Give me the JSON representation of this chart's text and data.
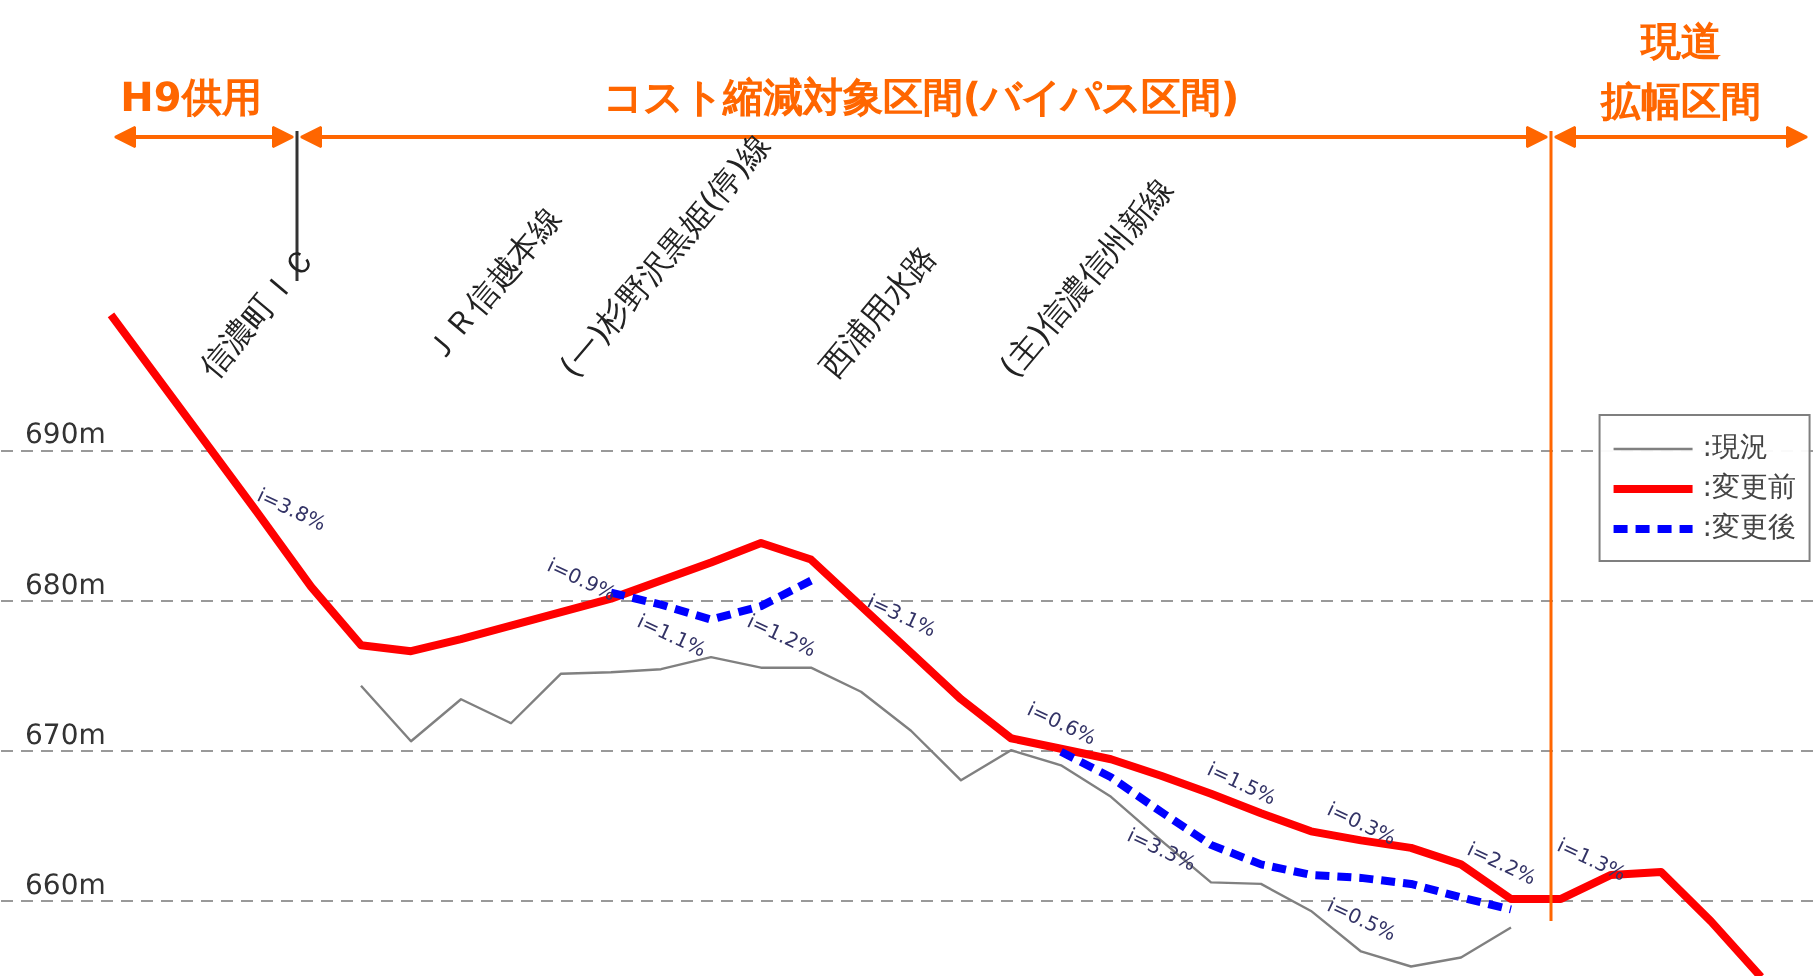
{
  "chart_data": {
    "type": "line",
    "categories": [
      null,
      null,
      null,
      null,
      null,
      null,
      null,
      null,
      null,
      null,
      null,
      null,
      null,
      null,
      null,
      null,
      null,
      null,
      null,
      null,
      null,
      null,
      null,
      null,
      null,
      null,
      null,
      null,
      null,
      null,
      null,
      null,
      null,
      null
    ],
    "ylim": [
      655,
      720
    ],
    "yticks": [
      {
        "value": 660,
        "label": "660m"
      },
      {
        "value": 670,
        "label": "670m"
      },
      {
        "value": 680,
        "label": "680m"
      },
      {
        "value": 690,
        "label": "690m"
      }
    ],
    "tick_labels": "y",
    "grid": "y",
    "legend": "right",
    "marker": "none",
    "series": [
      {
        "name": ":現況",
        "color": "#808080",
        "line_style": "solid",
        "values": [
          null,
          null,
          null,
          null,
          null,
          674.4,
          670.7,
          673.5,
          671.9,
          675.2,
          675.3,
          675.5,
          676.3,
          675.6,
          675.6,
          674.0,
          671.4,
          668.1,
          670.1,
          669.1,
          667.0,
          664.1,
          661.3,
          661.2,
          659.4,
          656.7,
          655.7,
          656.3,
          658.3,
          null,
          null,
          null,
          null,
          null
        ]
      },
      {
        "name": ":変更前",
        "color": "#ff0000",
        "line_style": "solid",
        "values": [
          699.1,
          694.6,
          690.1,
          685.6,
          681.0,
          677.1,
          676.7,
          677.5,
          678.4,
          679.3,
          680.2,
          681.4,
          682.6,
          683.9,
          682.8,
          679.7,
          676.6,
          673.5,
          670.9,
          670.2,
          669.5,
          668.4,
          667.2,
          665.9,
          664.7,
          664.1,
          663.6,
          662.5,
          660.2,
          660.2,
          661.8,
          662.0,
          658.7,
          655.0
        ]
      },
      {
        "name": ":変更後",
        "color": "#0000ff",
        "line_style": "dashed",
        "values": [
          null,
          null,
          null,
          null,
          null,
          null,
          null,
          null,
          null,
          null,
          680.6,
          679.8,
          678.8,
          679.7,
          681.4,
          null,
          null,
          null,
          null,
          670.0,
          668.3,
          666.0,
          663.8,
          662.5,
          661.8,
          661.6,
          661.2,
          660.3,
          659.5,
          null,
          null,
          null,
          null,
          null
        ]
      }
    ],
    "annotations": [
      "H9供用",
      "コスト縮減対象区間(バイパス区間)",
      "現道",
      "拡幅区間",
      "信濃町ＩＣ",
      "ＪＲ信越本線",
      "(一)杉野沢黒姫(停)線",
      "西浦用水路",
      "(主)信濃信州新線",
      "i=3.8%",
      "i=0.9%",
      "i=1.1%",
      "i=1.2%",
      "i=3.1%",
      "i=0.6%",
      "i=3.3%",
      "i=1.5%",
      "i=0.3%",
      "i=0.5%",
      "i=2.2%",
      "i=1.3%"
    ]
  }
}
